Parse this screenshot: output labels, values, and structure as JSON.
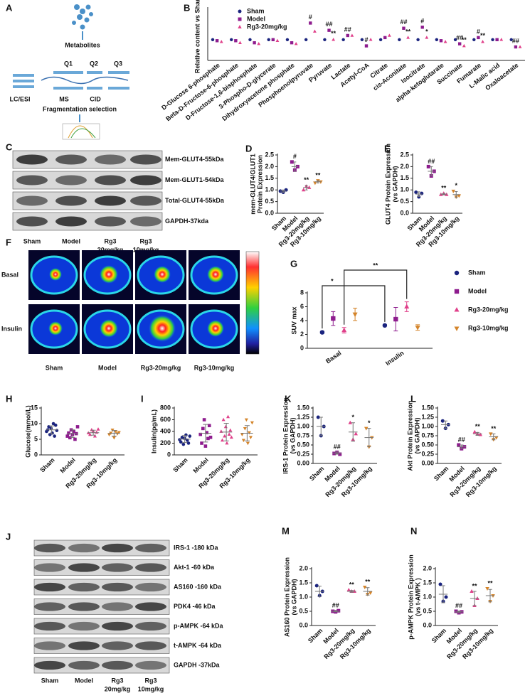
{
  "diagram": {
    "panel": "A",
    "texts": [
      "Metabolites",
      "Q1",
      "Q2",
      "Q3",
      "LC/ESI",
      "MS",
      "CID",
      "Fragmentation selection"
    ]
  },
  "blots_c": {
    "panel": "C",
    "rows": [
      "Mem-GLUT4-55kDa",
      "Mem-GLUT1-54kDa",
      "Total-GLUT4-55kDa",
      "GAPDH-37kda"
    ],
    "lanes": [
      [
        "Sham"
      ],
      [
        "Model"
      ],
      [
        "Rg3",
        "20mg/kg"
      ],
      [
        "Rg3",
        "10mg/kg"
      ]
    ]
  },
  "imaging": {
    "panel": "F",
    "rows": [
      "Basal",
      "Insulin"
    ],
    "columns": [
      "Sham",
      "Model",
      "Rg3-20mg/kg",
      "Rg3-10mg/kg"
    ]
  },
  "blots_j": {
    "panel": "J",
    "rows": [
      "IRS-1 -180 kDa",
      "Akt-1 -60 kDa",
      "AS160 -160 kDa",
      "PDK4  -46 kDa",
      "p-AMPK  -64 kDa",
      "t-AMPK  -64 kDa",
      "GAPDH  -37kDa"
    ],
    "lanes": [
      [
        "Sham"
      ],
      [
        "Model"
      ],
      [
        "Rg3",
        "20mg/kg"
      ],
      [
        "Rg3",
        "10mg/kg"
      ]
    ]
  },
  "chart_data": [
    {
      "panel": "B",
      "type": "grouped-dot",
      "ylabel": "Relative content vs Sham",
      "ylim": [
        0,
        2.5
      ],
      "legend": "upper left",
      "categories": [
        "D-Glucose 6-phosphate",
        "Beta-D-Fructose-6-phosphate",
        "D-Fructose-1,6-bisphosphate",
        "3-Phospho-D-glycerate",
        "Dihydroxyacetone phosphate",
        "Phosphoenolpyruvate",
        "Pyruvate",
        "Lactate",
        "Acetyl-CoA",
        "Citrate",
        "cis-Aconitate",
        "Isocitrate",
        "alpha-ketoglutarate",
        "Succinate",
        "Fumarate",
        "L-Malic acid",
        "Oxaloacetate"
      ],
      "series": [
        {
          "name": "Sham",
          "color": "#1a237e",
          "marker": "circle",
          "values": [
            1,
            1,
            1,
            1,
            1,
            1,
            1,
            1,
            1,
            1,
            1,
            1,
            1,
            1,
            1,
            1,
            1
          ]
        },
        {
          "name": "Model",
          "color": "#8e1c8e",
          "marker": "square",
          "values": [
            0.95,
            0.95,
            0.85,
            1.0,
            0.85,
            1.8,
            1.45,
            1.2,
            0.7,
            1.1,
            1.55,
            1.6,
            0.95,
            0.8,
            1.1,
            1.0,
            0.65
          ],
          "annotations": [
            null,
            null,
            null,
            null,
            null,
            "#",
            "##",
            "##",
            "#",
            null,
            "##",
            "#",
            null,
            "##",
            "#",
            null,
            "##"
          ]
        },
        {
          "name": "Rg3-20mg/kg",
          "color": "#e0408a",
          "marker": "triangle",
          "values": [
            0.9,
            0.85,
            0.8,
            0.95,
            0.8,
            1.4,
            1.0,
            1.2,
            1.0,
            1.2,
            1.1,
            1.1,
            0.9,
            0.7,
            0.9,
            1.0,
            0.65
          ],
          "annotations": [
            null,
            null,
            null,
            null,
            null,
            null,
            "**",
            null,
            null,
            null,
            "**",
            "*",
            null,
            "**",
            "**",
            null,
            null
          ]
        }
      ]
    },
    {
      "panel": "D",
      "type": "dot",
      "ylabel": [
        "mem-GLUT4/GLUT1",
        "Protein Expression"
      ],
      "ylim": [
        0,
        2.5
      ],
      "yticks": [
        {
          "value": 0,
          "label": "0.0"
        },
        0.5,
        {
          "value": 1,
          "label": "1.0"
        },
        1.5,
        {
          "value": 2,
          "label": "2.0"
        },
        2.5
      ],
      "categories": [
        "Sham",
        "Model",
        "Rg3-20mg/kg",
        "Rg3-10mg/kg"
      ],
      "colors": [
        "#1a237e",
        "#8e1c8e",
        "#e0408a",
        "#d4842a"
      ],
      "markers": [
        "circle",
        "square",
        "triangle",
        "triangle-down"
      ],
      "points": [
        [
          0.95,
          0.9,
          1.0
        ],
        [
          2.2,
          1.85,
          2.0
        ],
        [
          1.0,
          1.15,
          1.1
        ],
        [
          1.3,
          1.4,
          1.35
        ]
      ],
      "means": [
        0.95,
        2.0,
        1.1,
        1.35
      ],
      "errors": [
        0.05,
        0.2,
        0.1,
        0.05
      ],
      "annotations": [
        null,
        "#",
        "**",
        "**"
      ]
    },
    {
      "panel": "E",
      "type": "dot",
      "ylabel": [
        "GLUT4 Protein Expression",
        "(vs GAPDH)"
      ],
      "ylim": [
        0,
        2.5
      ],
      "yticks": [
        {
          "value": 0,
          "label": "0.0"
        },
        0.5,
        {
          "value": 1,
          "label": "1.0"
        },
        1.5,
        {
          "value": 2,
          "label": "2.0"
        },
        2.5
      ],
      "categories": [
        "Sham",
        "Model",
        "Rg3-20mg/kg",
        "Rg3-10mg/kg"
      ],
      "colors": [
        "#1a237e",
        "#8e1c8e",
        "#e0408a",
        "#d4842a"
      ],
      "markers": [
        "circle",
        "square",
        "triangle",
        "triangle-down"
      ],
      "points": [
        [
          0.9,
          0.7,
          0.85
        ],
        [
          2.0,
          1.6,
          1.8
        ],
        [
          0.8,
          0.85,
          0.8
        ],
        [
          0.95,
          0.7,
          0.75
        ]
      ],
      "means": [
        0.82,
        1.8,
        0.82,
        0.8
      ],
      "errors": [
        0.1,
        0.2,
        0.03,
        0.13
      ],
      "annotations": [
        null,
        "##",
        "**",
        "*"
      ]
    },
    {
      "panel": "G",
      "type": "grouped-dot",
      "ylabel": "SUV max",
      "ylim": [
        0,
        8
      ],
      "yticks": [
        0,
        2,
        4,
        6,
        8
      ],
      "legend": "right",
      "categories": [
        "Basal",
        "Insulin"
      ],
      "series": [
        {
          "name": "Sham",
          "color": "#1a237e",
          "marker": "circle",
          "values": [
            2.3,
            3.3
          ],
          "errors": [
            0.15,
            0.1
          ]
        },
        {
          "name": "Model",
          "color": "#8e1c8e",
          "marker": "square",
          "values": [
            4.3,
            4.2
          ],
          "errors": [
            1.0,
            1.7
          ]
        },
        {
          "name": "Rg3-20mg/kg",
          "color": "#e0408a",
          "marker": "triangle",
          "values": [
            2.6,
            6.0
          ],
          "errors": [
            0.4,
            0.7
          ]
        },
        {
          "name": "Rg3-10mg/kg",
          "color": "#d4842a",
          "marker": "triangle-down",
          "values": [
            4.9,
            3.0
          ],
          "errors": [
            0.9,
            0.4
          ]
        }
      ],
      "brackets": [
        {
          "label": "*",
          "series": "Sham"
        },
        {
          "label": "**",
          "series": "Rg3-20mg/kg"
        }
      ]
    },
    {
      "panel": "H",
      "type": "dot",
      "ylabel": "Glucose(mmol/L)",
      "ylim": [
        0,
        15
      ],
      "yticks": [
        0,
        5,
        10,
        15
      ],
      "categories": [
        "Sham",
        "Model",
        "Rg3-20mg/kg",
        "Rg3-10mg/kg"
      ],
      "colors": [
        "#1a237e",
        "#8e1c8e",
        "#e0408a",
        "#d4842a"
      ],
      "markers": [
        "circle",
        "square",
        "triangle",
        "triangle-down"
      ],
      "points": [
        [
          7.5,
          8,
          9,
          6.5,
          8.5,
          7,
          10,
          6,
          9.5,
          7.8
        ],
        [
          6,
          7,
          5.5,
          8,
          6.5,
          7.5,
          5,
          6.8,
          9
        ],
        [
          7,
          6.5,
          8,
          7.5,
          6,
          7.2,
          8.2
        ],
        [
          6.5,
          7,
          8,
          5.5,
          7.5,
          6.8,
          7.2
        ]
      ],
      "means": [
        8,
        6.8,
        7.1,
        6.9
      ],
      "errors": [
        1.3,
        1.2,
        0.8,
        0.9
      ]
    },
    {
      "panel": "I",
      "type": "dot",
      "ylabel": "Insulin(pg/mL)",
      "ylim": [
        0,
        800
      ],
      "yticks": [
        0,
        200,
        400,
        600,
        800
      ],
      "categories": [
        "Sham",
        "Model",
        "Rg3-20mg/kg",
        "Rg3-10mg/kg"
      ],
      "colors": [
        "#1a237e",
        "#8e1c8e",
        "#e0408a",
        "#d4842a"
      ],
      "markers": [
        "circle",
        "square",
        "triangle",
        "triangle-down"
      ],
      "points": [
        [
          260,
          220,
          300,
          180,
          280,
          340,
          250,
          200,
          320
        ],
        [
          350,
          200,
          450,
          600,
          150,
          380,
          280,
          500,
          300
        ],
        [
          400,
          250,
          600,
          320,
          480,
          200,
          650,
          350,
          420,
          300
        ],
        [
          350,
          250,
          450,
          600,
          200,
          380,
          300,
          550
        ]
      ],
      "means": [
        270,
        370,
        390,
        370
      ],
      "errors": [
        60,
        150,
        150,
        130
      ]
    },
    {
      "panel": "K",
      "type": "dot",
      "ylabel": [
        "IRS-1 Protein Expression",
        "(vs GAPDH)"
      ],
      "ylim": [
        0,
        1.5
      ],
      "yticks": [
        {
          "value": 0,
          "label": "0.00"
        },
        0.25,
        {
          "value": 0.5,
          "label": "0.50"
        },
        0.75,
        {
          "value": 1,
          "label": "1.00"
        },
        1.25,
        {
          "value": 1.5,
          "label": "1.50"
        }
      ],
      "categories": [
        "Sham",
        "Model",
        "Rg3-20mg/kg",
        "Rg3-10mg/kg"
      ],
      "colors": [
        "#1a237e",
        "#8e1c8e",
        "#e0408a",
        "#d4842a"
      ],
      "markers": [
        "circle",
        "square",
        "triangle",
        "triangle-down"
      ],
      "points": [
        [
          1.25,
          0.75,
          1.0
        ],
        [
          0.27,
          0.3,
          0.25
        ],
        [
          1.1,
          0.65,
          0.8
        ],
        [
          0.95,
          0.45,
          0.7
        ]
      ],
      "means": [
        1.0,
        0.28,
        0.85,
        0.7
      ],
      "errors": [
        0.25,
        0.03,
        0.25,
        0.25
      ],
      "annotations": [
        null,
        "##",
        "*",
        "*"
      ]
    },
    {
      "panel": "L",
      "type": "dot",
      "ylabel": [
        "Akt Protein Expression",
        "(vs GAPDH)"
      ],
      "ylim": [
        0,
        1.5
      ],
      "yticks": [
        {
          "value": 0,
          "label": "0.00"
        },
        0.25,
        {
          "value": 0.5,
          "label": "0.50"
        },
        0.75,
        {
          "value": 1,
          "label": "1.00"
        },
        1.25,
        {
          "value": 1.5,
          "label": "1.50"
        }
      ],
      "categories": [
        "Sham",
        "Model",
        "Rg3-20mg/kg",
        "Rg3-10mg/kg"
      ],
      "colors": [
        "#1a237e",
        "#8e1c8e",
        "#e0408a",
        "#d4842a"
      ],
      "markers": [
        "circle",
        "square",
        "triangle",
        "triangle-down"
      ],
      "points": [
        [
          1.15,
          0.95,
          1.05
        ],
        [
          0.5,
          0.4,
          0.45
        ],
        [
          0.85,
          0.8,
          0.78
        ],
        [
          0.8,
          0.65,
          0.7
        ]
      ],
      "means": [
        1.05,
        0.45,
        0.8,
        0.72
      ],
      "errors": [
        0.1,
        0.05,
        0.04,
        0.08
      ],
      "annotations": [
        null,
        "##",
        "**",
        "**"
      ]
    },
    {
      "panel": "M",
      "type": "dot",
      "ylabel": [
        "AS160 Protein Expression",
        "(vs GAPDH)"
      ],
      "ylim": [
        0,
        2
      ],
      "yticks": [
        {
          "value": 0,
          "label": "0.0"
        },
        0.5,
        {
          "value": 1,
          "label": "1.0"
        },
        1.5,
        {
          "value": 2,
          "label": "2.0"
        }
      ],
      "categories": [
        "Sham",
        "Model",
        "Rg3-20mg/kg",
        "Rg3-10mg/kg"
      ],
      "colors": [
        "#1a237e",
        "#8e1c8e",
        "#e0408a",
        "#d4842a"
      ],
      "markers": [
        "circle",
        "square",
        "triangle",
        "triangle-down"
      ],
      "points": [
        [
          1.4,
          1.05,
          1.2
        ],
        [
          0.5,
          0.48,
          0.52
        ],
        [
          1.25,
          1.2,
          1.2
        ],
        [
          1.35,
          1.1,
          1.15
        ]
      ],
      "means": [
        1.2,
        0.5,
        1.2,
        1.2
      ],
      "errors": [
        0.18,
        0.02,
        0.03,
        0.13
      ],
      "annotations": [
        null,
        "##",
        "**",
        "**"
      ]
    },
    {
      "panel": "N",
      "type": "dot",
      "ylabel": [
        "p-AMPK Protein Expression",
        "(vs t-AMPK )"
      ],
      "ylim": [
        0,
        2
      ],
      "yticks": [
        {
          "value": 0,
          "label": "0.0"
        },
        0.5,
        {
          "value": 1,
          "label": "1.0"
        },
        1.5,
        {
          "value": 2,
          "label": "2.0"
        }
      ],
      "categories": [
        "Sham",
        "Model",
        "Rg3-20mg/kg",
        "Rg3-10mg/kg"
      ],
      "colors": [
        "#1a237e",
        "#8e1c8e",
        "#e0408a",
        "#d4842a"
      ],
      "markers": [
        "circle",
        "square",
        "triangle",
        "triangle-down"
      ],
      "points": [
        [
          1.45,
          0.85,
          1.0
        ],
        [
          0.5,
          0.45,
          0.48
        ],
        [
          1.2,
          0.7,
          0.95
        ],
        [
          1.3,
          0.85,
          1.05
        ]
      ],
      "means": [
        1.1,
        0.48,
        0.95,
        1.05
      ],
      "errors": [
        0.3,
        0.03,
        0.25,
        0.22
      ],
      "annotations": [
        null,
        "##",
        "**",
        "**"
      ]
    }
  ]
}
